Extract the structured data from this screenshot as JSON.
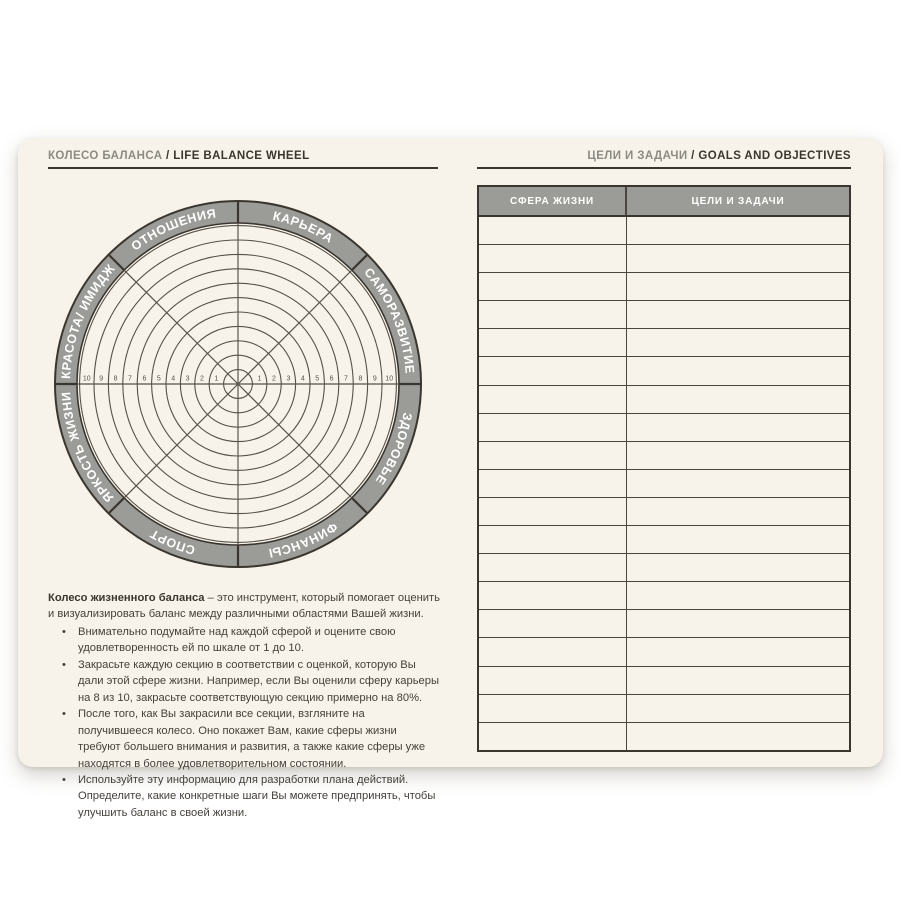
{
  "colors": {
    "paper": "#f8f3ea",
    "ink": "#3a362f",
    "thin_line": "#55504a",
    "ring_gray": "#9b9c98",
    "muted_gray": "#8b8a83",
    "white": "#ffffff"
  },
  "left_page": {
    "header": {
      "ru": "КОЛЕСО БАЛАНСА",
      "divider": " / ",
      "en": "LIFE BALANCE WHEEL"
    },
    "wheel": {
      "sectors_clockwise_from_top": [
        "КАРЬЕРА",
        "САМОРАЗВИТИЕ",
        "ЗДОРОВЬЕ",
        "ФИНАНСЫ",
        "СПОРТ",
        "ЯРКОСТЬ ЖИЗНИ",
        "КРАСОТА/ ИМИДЖ",
        "ОТНОШЕНИЯ"
      ],
      "scale_numbers": [
        1,
        2,
        3,
        4,
        5,
        6,
        7,
        8,
        9,
        10
      ],
      "ring_count": 11
    },
    "description": {
      "intro_bold": "Колесо жизненного баланса",
      "intro_rest": " – это инструмент, который помогает оценить и визуализировать баланс между различными областями Вашей жизни.",
      "bullets": [
        "Внимательно подумайте над каждой сферой и оцените свою удовлетворенность ей по шкале от 1 до 10.",
        "Закрасьте каждую секцию в соответствии с оценкой, которую Вы дали этой сфере жизни. Например, если Вы оценили сферу карьеры на 8 из 10, закрасьте соответствующую секцию примерно на 80%.",
        "После того, как Вы закрасили все секции, взгляните на получившееся колесо. Оно покажет Вам, какие сферы жизни требуют большего внимания и развития, а также какие сферы уже находятся в более удовлетворительном состоянии.",
        "Используйте эту информацию для разработки плана действий. Определите, какие конкретные шаги Вы можете предпринять, чтобы улучшить баланс в своей жизни."
      ]
    }
  },
  "right_page": {
    "header": {
      "ru": "ЦЕЛИ И ЗАДАЧИ",
      "divider": " / ",
      "en": "GOALS AND OBJECTIVES"
    },
    "table": {
      "columns": [
        "СФЕРА ЖИЗНИ",
        "ЦЕЛИ И ЗАДАЧИ"
      ],
      "empty_row_count": 19
    }
  }
}
